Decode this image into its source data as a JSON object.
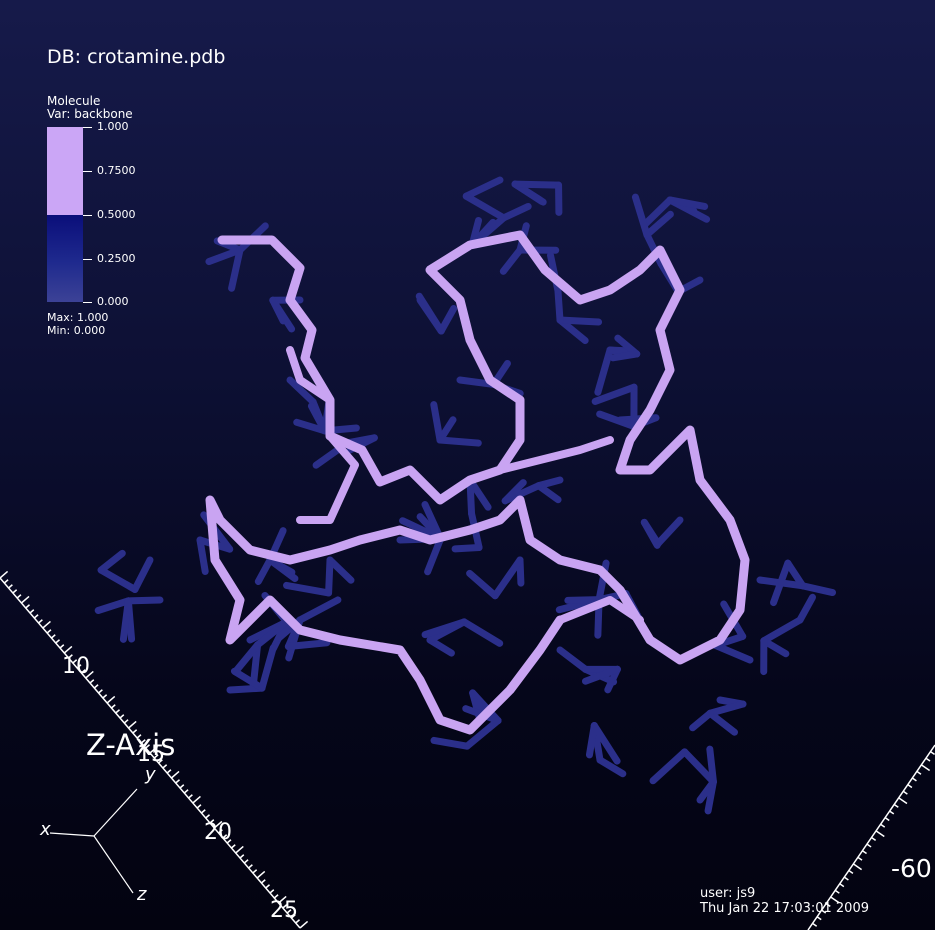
{
  "window": {
    "db_label": "DB: crotamine.pdb"
  },
  "legend": {
    "title": "Molecule",
    "variable": "Var: backbone",
    "ticks": [
      "1.000",
      "0.7500",
      "0.5000",
      "0.2500",
      "0.000"
    ],
    "max": "Max:  1.000",
    "min": "Min:  0.000",
    "colors": {
      "high": "#cba6f6",
      "low": "#0a0e7a"
    }
  },
  "axes": {
    "z_axis_title": "Z-Axis",
    "z_tick_labels": [
      "10",
      "15",
      "20",
      "25"
    ],
    "right_tick_label": "-60",
    "triad": {
      "x": "x",
      "y": "y",
      "z": "z"
    }
  },
  "footer": {
    "user": "user: js9",
    "date": "Thu Jan 22 17:03:01 2009"
  },
  "colors": {
    "backbone": "#c9a4f2",
    "sidechain": "#2b2f8a",
    "background_top": "#161a4a",
    "background_bottom": "#030310"
  }
}
